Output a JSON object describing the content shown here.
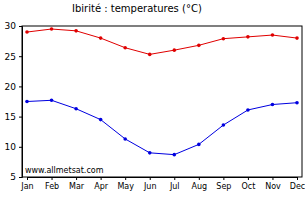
{
  "chart_data": {
    "type": "line",
    "title": "Ibirité : temperatures (°C)",
    "categories": [
      "Jan",
      "Feb",
      "Mar",
      "Apr",
      "May",
      "Jun",
      "Jul",
      "Aug",
      "Sep",
      "Oct",
      "Nov",
      "Dec"
    ],
    "series": [
      {
        "color": "#e00000",
        "marker": "circle",
        "values": [
          29,
          29.5,
          29.2,
          28,
          26.4,
          25.3,
          26,
          26.8,
          27.9,
          28.2,
          28.5,
          28
        ]
      },
      {
        "color": "#0000e0",
        "marker": "circle",
        "values": [
          17.5,
          17.7,
          16.3,
          14.5,
          11.3,
          9,
          8.7,
          10.4,
          13.6,
          16.1,
          17,
          17.3
        ]
      }
    ],
    "ylim": [
      5,
      30
    ],
    "yticks": [
      5,
      10,
      15,
      20,
      25,
      30
    ],
    "grid": false,
    "annotations": [
      "www.allmetsat.com"
    ]
  }
}
